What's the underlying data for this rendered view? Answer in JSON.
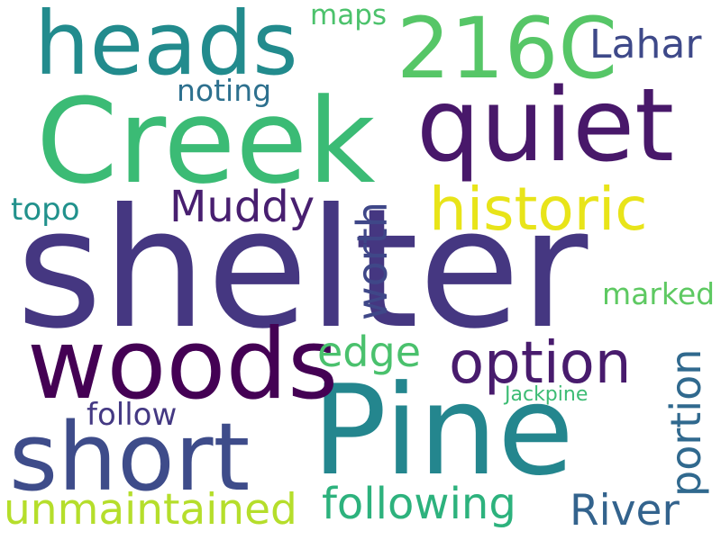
{
  "words": [
    {
      "id": "shelter",
      "text": "shelter",
      "color": "#453781"
    },
    {
      "id": "creek",
      "text": "Creek",
      "color": "#3bbb75"
    },
    {
      "id": "pine",
      "text": "Pine",
      "color": "#24868e"
    },
    {
      "id": "woods",
      "text": "woods",
      "color": "#440154"
    },
    {
      "id": "heads",
      "text": "heads",
      "color": "#228b8d"
    },
    {
      "id": "quiet",
      "text": "quiet",
      "color": "#48186a"
    },
    {
      "id": "216c",
      "text": "216C",
      "color": "#56c667"
    },
    {
      "id": "short",
      "text": "short",
      "color": "#3e4c8a"
    },
    {
      "id": "option",
      "text": "option",
      "color": "#481b6d"
    },
    {
      "id": "historic",
      "text": "historic",
      "color": "#e8e419"
    },
    {
      "id": "unmaintained",
      "text": "unmaintained",
      "color": "#b5de2b"
    },
    {
      "id": "following",
      "text": "following",
      "color": "#2db27d"
    },
    {
      "id": "river",
      "text": "River",
      "color": "#33638d"
    },
    {
      "id": "lahar",
      "text": "Lahar",
      "color": "#3e4989"
    },
    {
      "id": "muddy",
      "text": "Muddy",
      "color": "#481f70"
    },
    {
      "id": "worth",
      "text": "worth",
      "color": "#3f4788"
    },
    {
      "id": "portion",
      "text": "portion",
      "color": "#30698e"
    },
    {
      "id": "edge",
      "text": "edge",
      "color": "#4ac16d"
    },
    {
      "id": "noting",
      "text": "noting",
      "color": "#2d708e"
    },
    {
      "id": "maps",
      "text": "maps",
      "color": "#4cc26c"
    },
    {
      "id": "topo",
      "text": "topo",
      "color": "#21918c"
    },
    {
      "id": "follow",
      "text": "follow",
      "color": "#443983"
    },
    {
      "id": "marked",
      "text": "marked",
      "color": "#5ec962"
    },
    {
      "id": "jackpine",
      "text": "Jackpine",
      "color": "#3dbc74"
    }
  ]
}
